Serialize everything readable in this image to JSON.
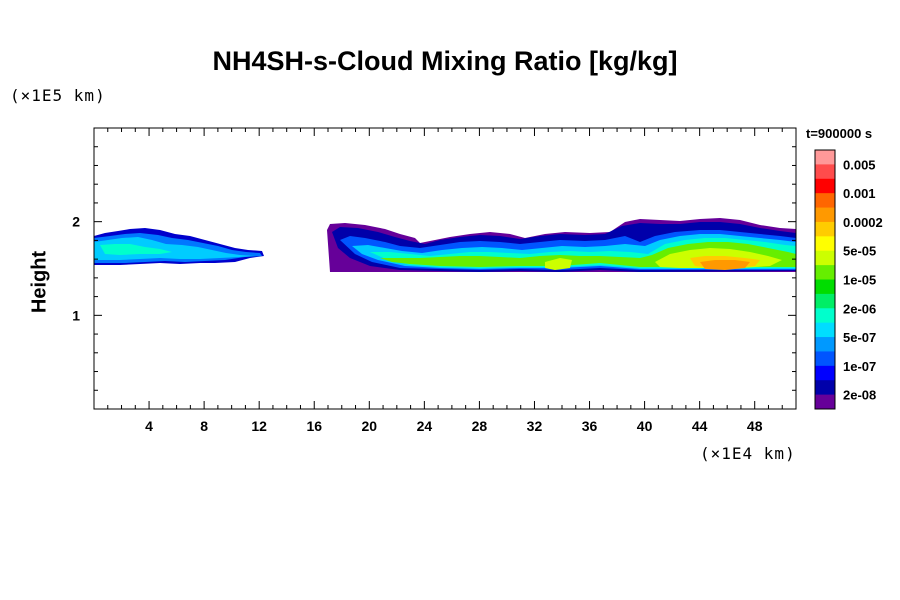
{
  "chart_data": {
    "type": "heatmap",
    "title": "NH4SH-s-Cloud Mixing Ratio [kg/kg]",
    "ylabel": "Height",
    "y_unit": "(×1E5 km)",
    "x_unit": "(×1E4 km)",
    "time_label": "t=900000 s",
    "xlim": [
      0,
      51
    ],
    "ylim": [
      0,
      3
    ],
    "x_ticks": [
      "4",
      "8",
      "12",
      "16",
      "20",
      "24",
      "28",
      "32",
      "36",
      "40",
      "44",
      "48"
    ],
    "x_tick_values": [
      4,
      8,
      12,
      16,
      20,
      24,
      28,
      32,
      36,
      40,
      44,
      48
    ],
    "y_ticks": [
      "1",
      "2"
    ],
    "y_tick_values": [
      1,
      2
    ],
    "colorbar_labels": [
      "0.005",
      "0.001",
      "0.0002",
      "5e-05",
      "1e-05",
      "2e-06",
      "5e-07",
      "1e-07",
      "2e-08"
    ],
    "colors": [
      "#ff9999",
      "#ff4c4c",
      "#ff0000",
      "#ff6600",
      "#ff9900",
      "#ffcc00",
      "#ffff00",
      "#ccff00",
      "#66ee00",
      "#00dd00",
      "#00ee66",
      "#00ffcc",
      "#00ddff",
      "#0099ff",
      "#0055ff",
      "#0000ff",
      "#0000aa",
      "#660099"
    ],
    "cloud_regions": [
      {
        "name": "left",
        "x": [
          0,
          12.3
        ],
        "y": [
          1.55,
          1.9
        ],
        "peak_level": "5e-07"
      },
      {
        "name": "middle",
        "x": [
          17,
          40
        ],
        "y": [
          1.45,
          1.95
        ],
        "peak_level": "1e-05"
      },
      {
        "name": "right",
        "x": [
          39,
          51
        ],
        "y": [
          1.45,
          2.0
        ],
        "peak_level": "0.0002"
      }
    ]
  }
}
